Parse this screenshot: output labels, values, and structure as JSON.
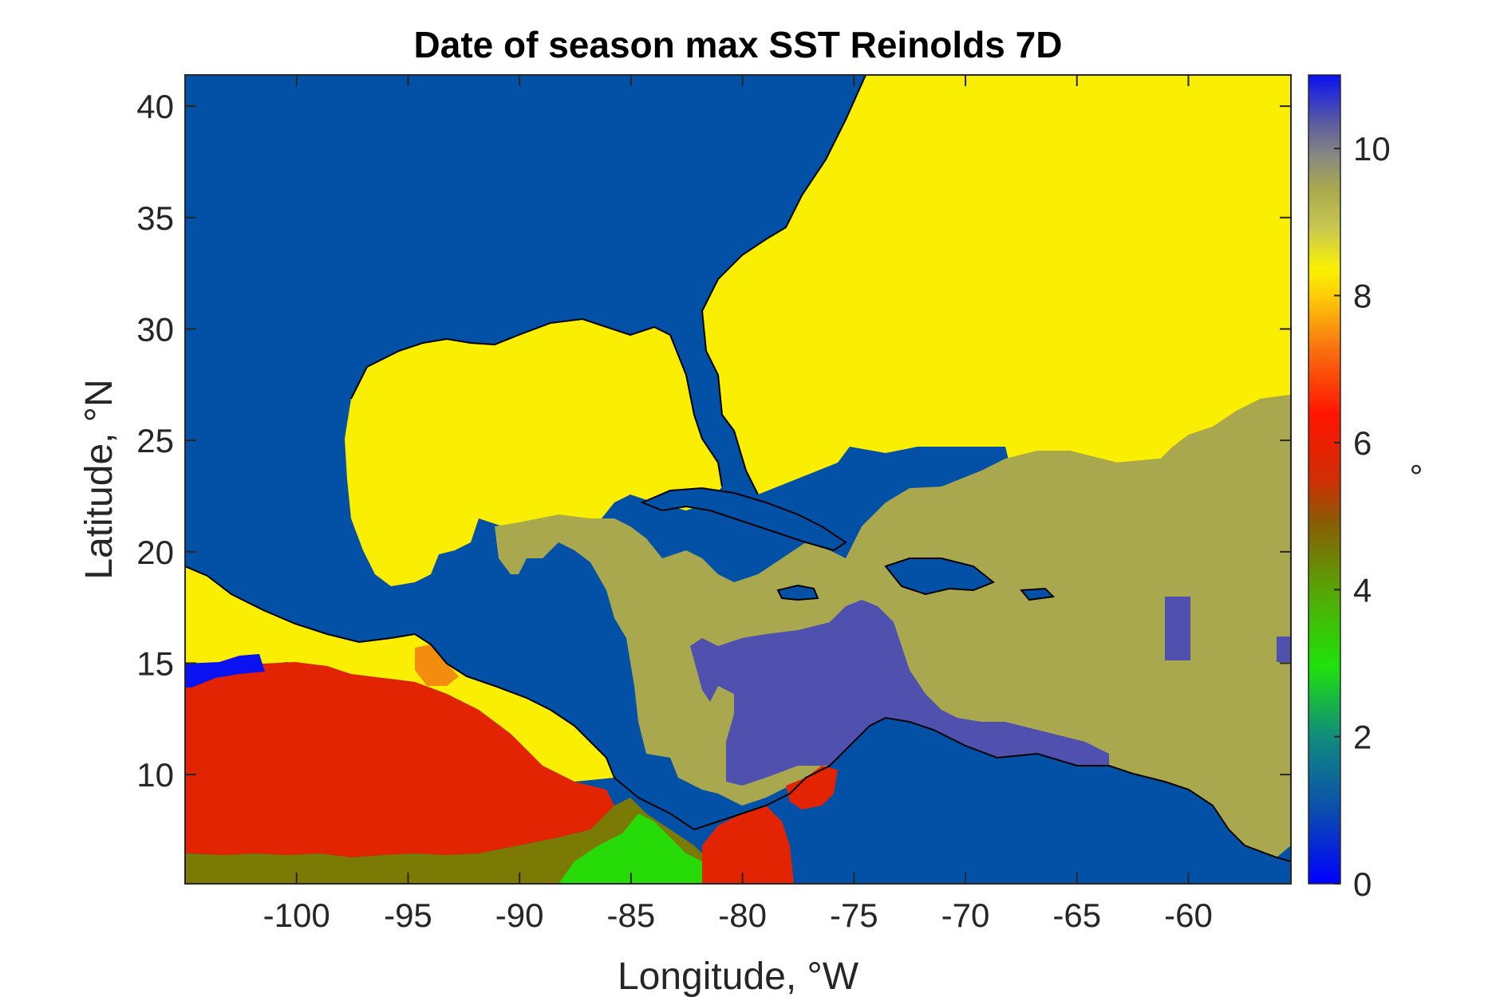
{
  "chart_data": {
    "type": "heatmap",
    "title": "Date of season max SST Reinolds 7D",
    "xlabel": "Longitude, °W",
    "ylabel": "Latitude, °N",
    "x_ticks": [
      -100,
      -95,
      -90,
      -85,
      -80,
      -75,
      -70,
      -65,
      -60
    ],
    "y_ticks": [
      10,
      15,
      20,
      25,
      30,
      35,
      40
    ],
    "xlim": [
      -105,
      -55.4
    ],
    "ylim": [
      5.1,
      41.4
    ],
    "colorbar": {
      "label": "°",
      "ticks": [
        0,
        2,
        4,
        6,
        8,
        10
      ],
      "range": [
        0,
        11
      ]
    },
    "colors": {
      "land": "#0251A6",
      "yellow_8": "#FAEE02",
      "olive_9": "#A9A84F",
      "purple_10": "#5050AE",
      "red_6": "#E32402",
      "orange_7": "#F48C0F",
      "darkolive_4": "#7A7A05",
      "green_3": "#26DB08",
      "blue_0": "#0A12F2"
    }
  }
}
